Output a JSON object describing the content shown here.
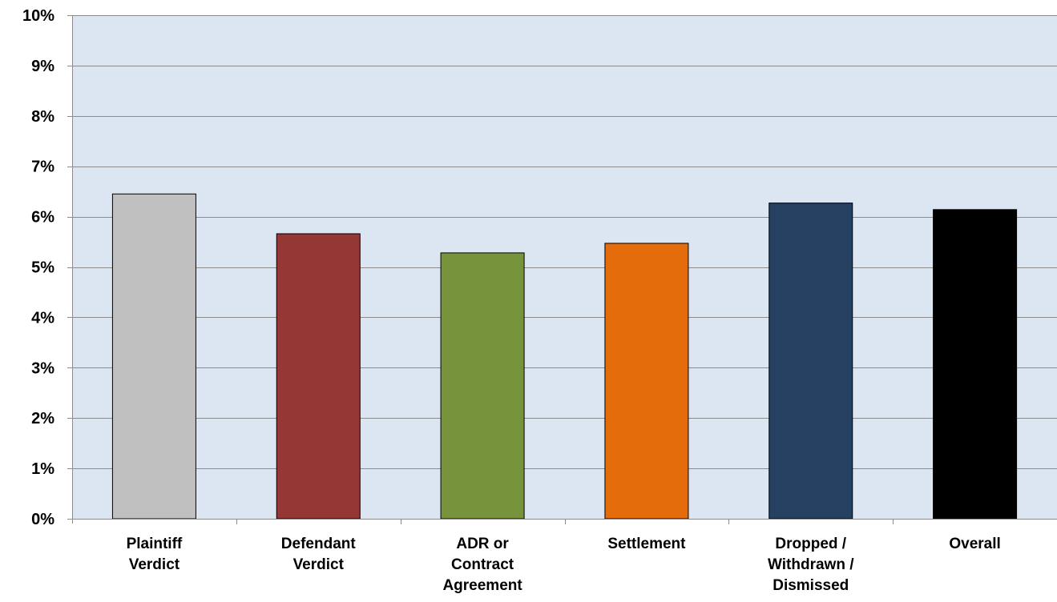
{
  "chart_data": {
    "type": "bar",
    "title": "",
    "xlabel": "",
    "ylabel": "",
    "categories": [
      [
        "Plaintiff",
        "Verdict"
      ],
      [
        "Defendant",
        "Verdict"
      ],
      [
        "ADR or",
        "Contract",
        "Agreement"
      ],
      [
        "Settlement"
      ],
      [
        "Dropped /",
        "Withdrawn /",
        "Dismissed"
      ],
      [
        "Overall"
      ]
    ],
    "values": [
      6.45,
      5.66,
      5.28,
      5.47,
      6.27,
      6.14
    ],
    "bar_colors": [
      "#c0c0c0",
      "#953735",
      "#77933c",
      "#e46c0a",
      "#254061",
      "#000000"
    ],
    "ylim": [
      0,
      10
    ],
    "yticks": [
      0,
      1,
      2,
      3,
      4,
      5,
      6,
      7,
      8,
      9,
      10
    ],
    "ytick_labels": [
      "0%",
      "1%",
      "2%",
      "3%",
      "4%",
      "5%",
      "6%",
      "7%",
      "8%",
      "9%",
      "10%"
    ],
    "grid": true,
    "plot_background": "#dce6f2",
    "gridline_color": "#8c8c8c"
  }
}
